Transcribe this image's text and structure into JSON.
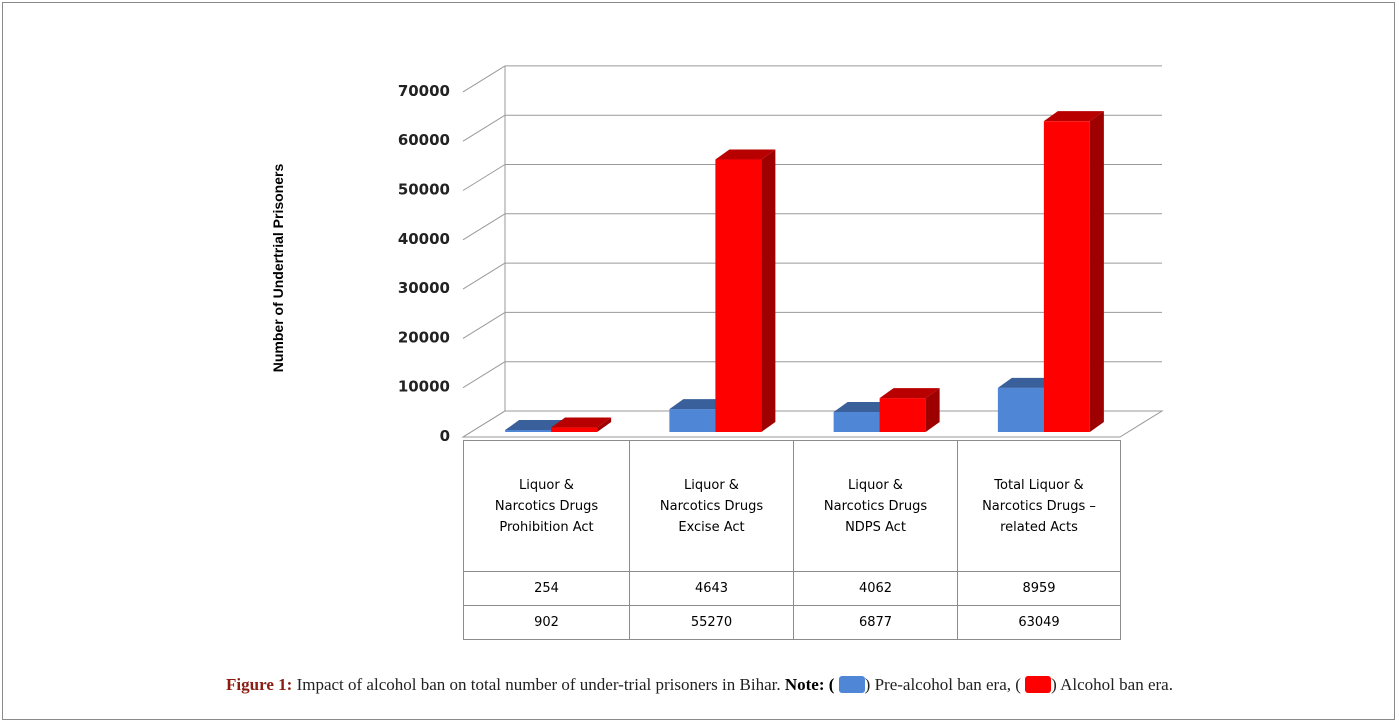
{
  "chart_data": {
    "type": "bar",
    "style": "3d-clustered-column",
    "ylabel": "Number of Undertrial Prisoners",
    "ylim": [
      0,
      70000
    ],
    "yticks": [
      0,
      10000,
      20000,
      30000,
      40000,
      50000,
      60000,
      70000
    ],
    "grid": true,
    "categories": [
      "Liquor & Narcotics Drugs Prohibition Act",
      "Liquor & Narcotics Drugs Excise Act",
      "Liquor & Narcotics Drugs NDPS Act",
      "Total Liquor & Narcotics Drugs – related Acts"
    ],
    "series": [
      {
        "values": [
          254,
          4643,
          4062,
          8959
        ],
        "color": "#4f86d6"
      },
      {
        "values": [
          902,
          55270,
          6877,
          63049
        ],
        "color": "#ff0000"
      }
    ],
    "table_values": [
      [
        "254",
        "4643",
        "4062",
        "8959"
      ],
      [
        "902",
        "55270",
        "6877",
        "63049"
      ]
    ]
  },
  "caption": {
    "figure": "Figure 1:",
    "text": " Impact of alcohol ban on total number of under-trial prisoners in Bihar. ",
    "note": "Note:",
    "open1": " (",
    "close1": ") Pre-alcohol ban era, (",
    "close2": ") Alcohol ban era."
  }
}
